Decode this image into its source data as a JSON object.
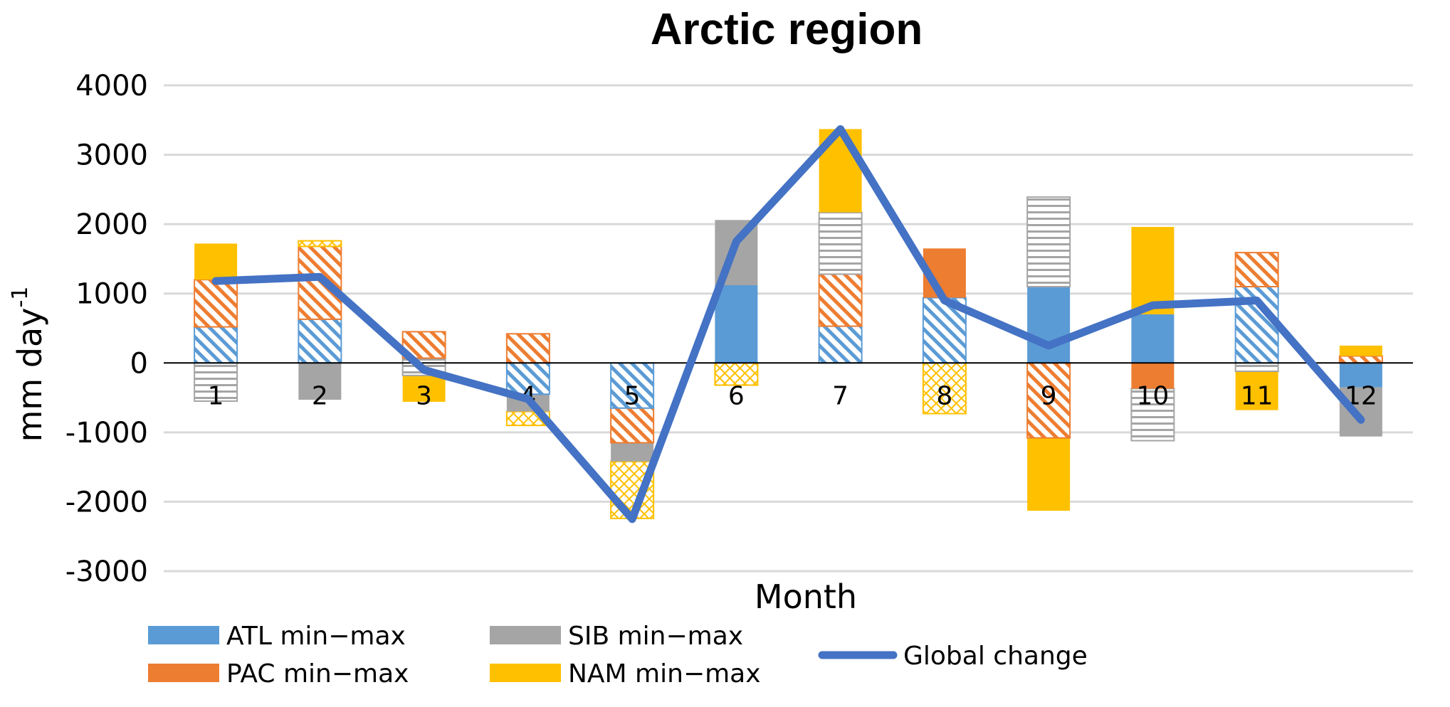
{
  "chart_data": {
    "type": "bar",
    "title": "Arctic region",
    "xlabel": "Month",
    "ylabel": "mm day",
    "ylabel_superscript": "-1",
    "ylim": [
      -3000,
      4000
    ],
    "yticks": [
      4000,
      3000,
      2000,
      1000,
      0,
      -1000,
      -2000,
      -3000
    ],
    "categories": [
      "1",
      "2",
      "3",
      "4",
      "5",
      "6",
      "7",
      "8",
      "9",
      "10",
      "11",
      "12"
    ],
    "colors": {
      "ATL": "#5b9bd5",
      "PAC": "#ed7d31",
      "SIB": "#a5a5a5",
      "NAM": "#ffc000",
      "global": "#4472c4"
    },
    "segments": [
      {
        "month": "1",
        "series": "SIB",
        "low": -550,
        "high": 0,
        "fill": "hstripe"
      },
      {
        "month": "1",
        "series": "ATL",
        "low": 0,
        "high": 520,
        "fill": "diag"
      },
      {
        "month": "1",
        "series": "PAC",
        "low": 520,
        "high": 1200,
        "fill": "diag"
      },
      {
        "month": "1",
        "series": "NAM",
        "low": 1200,
        "high": 1720,
        "fill": "solid"
      },
      {
        "month": "2",
        "series": "SIB",
        "low": -530,
        "high": 0,
        "fill": "solid"
      },
      {
        "month": "2",
        "series": "ATL",
        "low": 0,
        "high": 630,
        "fill": "diag"
      },
      {
        "month": "2",
        "series": "PAC",
        "low": 630,
        "high": 1680,
        "fill": "diag"
      },
      {
        "month": "2",
        "series": "NAM",
        "low": 1680,
        "high": 1760,
        "fill": "cross"
      },
      {
        "month": "3",
        "series": "NAM",
        "low": -560,
        "high": -180,
        "fill": "solid"
      },
      {
        "month": "3",
        "series": "SIB",
        "low": -180,
        "high": 70,
        "fill": "hstripe"
      },
      {
        "month": "3",
        "series": "PAC",
        "low": 70,
        "high": 450,
        "fill": "diag"
      },
      {
        "month": "4",
        "series": "NAM",
        "low": -900,
        "high": -700,
        "fill": "cross"
      },
      {
        "month": "4",
        "series": "SIB",
        "low": -700,
        "high": -450,
        "fill": "solid"
      },
      {
        "month": "4",
        "series": "ATL",
        "low": -450,
        "high": 0,
        "fill": "diag"
      },
      {
        "month": "4",
        "series": "PAC",
        "low": 0,
        "high": 420,
        "fill": "diag"
      },
      {
        "month": "5",
        "series": "NAM",
        "low": -2240,
        "high": -1420,
        "fill": "cross"
      },
      {
        "month": "5",
        "series": "SIB",
        "low": -1420,
        "high": -1150,
        "fill": "solid"
      },
      {
        "month": "5",
        "series": "PAC",
        "low": -1150,
        "high": -650,
        "fill": "diag"
      },
      {
        "month": "5",
        "series": "ATL",
        "low": -650,
        "high": 0,
        "fill": "diag"
      },
      {
        "month": "6",
        "series": "NAM",
        "low": -320,
        "high": 0,
        "fill": "cross"
      },
      {
        "month": "6",
        "series": "ATL",
        "low": 0,
        "high": 1120,
        "fill": "solid"
      },
      {
        "month": "6",
        "series": "SIB",
        "low": 1120,
        "high": 2060,
        "fill": "solid"
      },
      {
        "month": "7",
        "series": "ATL",
        "low": 0,
        "high": 530,
        "fill": "diag"
      },
      {
        "month": "7",
        "series": "PAC",
        "low": 530,
        "high": 1280,
        "fill": "diag"
      },
      {
        "month": "7",
        "series": "SIB",
        "low": 1280,
        "high": 2170,
        "fill": "hstripe"
      },
      {
        "month": "7",
        "series": "NAM",
        "low": 2170,
        "high": 3370,
        "fill": "solid"
      },
      {
        "month": "8",
        "series": "NAM",
        "low": -730,
        "high": 0,
        "fill": "cross"
      },
      {
        "month": "8",
        "series": "ATL",
        "low": 0,
        "high": 940,
        "fill": "diag"
      },
      {
        "month": "8",
        "series": "PAC",
        "low": 940,
        "high": 1650,
        "fill": "solid"
      },
      {
        "month": "9",
        "series": "NAM",
        "low": -2130,
        "high": -1080,
        "fill": "solid"
      },
      {
        "month": "9",
        "series": "PAC",
        "low": -1080,
        "high": 0,
        "fill": "diag"
      },
      {
        "month": "9",
        "series": "ATL",
        "low": 0,
        "high": 1100,
        "fill": "solid"
      },
      {
        "month": "9",
        "series": "SIB",
        "low": 1100,
        "high": 2390,
        "fill": "hstripe"
      },
      {
        "month": "10",
        "series": "SIB",
        "low": -1120,
        "high": -370,
        "fill": "hstripe"
      },
      {
        "month": "10",
        "series": "PAC",
        "low": -370,
        "high": 0,
        "fill": "solid"
      },
      {
        "month": "10",
        "series": "ATL",
        "low": 0,
        "high": 700,
        "fill": "solid"
      },
      {
        "month": "10",
        "series": "NAM",
        "low": 700,
        "high": 1960,
        "fill": "solid"
      },
      {
        "month": "11",
        "series": "NAM",
        "low": -680,
        "high": -120,
        "fill": "solid"
      },
      {
        "month": "11",
        "series": "SIB",
        "low": -120,
        "high": 0,
        "fill": "hstripe"
      },
      {
        "month": "11",
        "series": "ATL",
        "low": 0,
        "high": 1100,
        "fill": "diag"
      },
      {
        "month": "11",
        "series": "PAC",
        "low": 1100,
        "high": 1590,
        "fill": "diag"
      },
      {
        "month": "12",
        "series": "SIB",
        "low": -1060,
        "high": -350,
        "fill": "solid"
      },
      {
        "month": "12",
        "series": "ATL",
        "low": -350,
        "high": 0,
        "fill": "solid"
      },
      {
        "month": "12",
        "series": "PAC",
        "low": 0,
        "high": 100,
        "fill": "diag"
      },
      {
        "month": "12",
        "series": "NAM",
        "low": 100,
        "high": 250,
        "fill": "solid"
      }
    ],
    "line": {
      "name": "Global change",
      "values": [
        1180,
        1240,
        -100,
        -520,
        -2250,
        1750,
        3370,
        900,
        250,
        830,
        900,
        -820
      ]
    },
    "legend": [
      {
        "key": "ATL",
        "label": "ATL min−max"
      },
      {
        "key": "PAC",
        "label": "PAC min−max"
      },
      {
        "key": "SIB",
        "label": "SIB min−max"
      },
      {
        "key": "NAM",
        "label": "NAM min−max"
      },
      {
        "key": "global",
        "label": "Global change",
        "kind": "line"
      }
    ],
    "legend_position": "bottom",
    "grid": true
  }
}
